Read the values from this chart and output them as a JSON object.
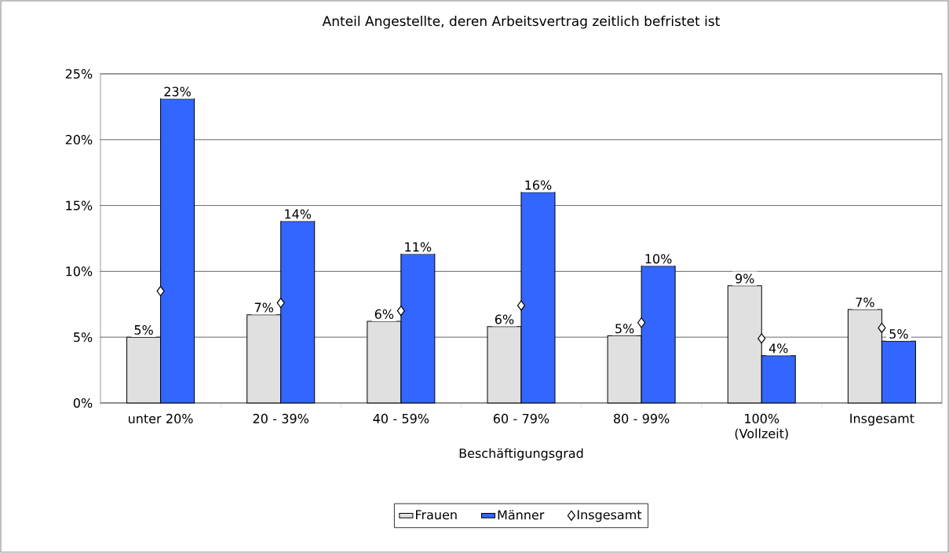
{
  "chart_data": {
    "type": "bar",
    "title": "Anteil Angestellte, deren Arbeitsvertrag zeitlich befristet ist",
    "xlabel": "Beschäftigungsgrad",
    "categories": [
      "unter 20%",
      "20 - 39%",
      "40 - 59%",
      "60 - 79%",
      "80 - 99%",
      "100% (Vollzeit)",
      "Insgesamt"
    ],
    "series": [
      {
        "name": "Frauen",
        "color": "#e0e0e0",
        "values": [
          5.0,
          6.7,
          6.2,
          5.8,
          5.1,
          8.9,
          7.1
        ],
        "value_labels": [
          "5%",
          "7%",
          "6%",
          "6%",
          "5%",
          "9%",
          "7%"
        ]
      },
      {
        "name": "Männer",
        "color": "#3366ff",
        "values": [
          23.1,
          13.8,
          11.3,
          16.0,
          10.4,
          3.6,
          4.7
        ],
        "value_labels": [
          "23%",
          "14%",
          "11%",
          "16%",
          "10%",
          "4%",
          "5%"
        ]
      },
      {
        "name": "Insgesamt",
        "type": "scatter",
        "marker": "diamond",
        "color": "#ffffff",
        "values": [
          8.5,
          7.6,
          7.0,
          7.4,
          6.1,
          4.9,
          5.7
        ]
      }
    ],
    "ylim": [
      0,
      25
    ],
    "yticks": [
      {
        "value": 0,
        "label": "0%"
      },
      {
        "value": 5,
        "label": "5%"
      },
      {
        "value": 10,
        "label": "10%"
      },
      {
        "value": 15,
        "label": "15%"
      },
      {
        "value": 20,
        "label": "20%"
      },
      {
        "value": 25,
        "label": "25%"
      }
    ],
    "grid": "y",
    "legend": "bottom"
  }
}
